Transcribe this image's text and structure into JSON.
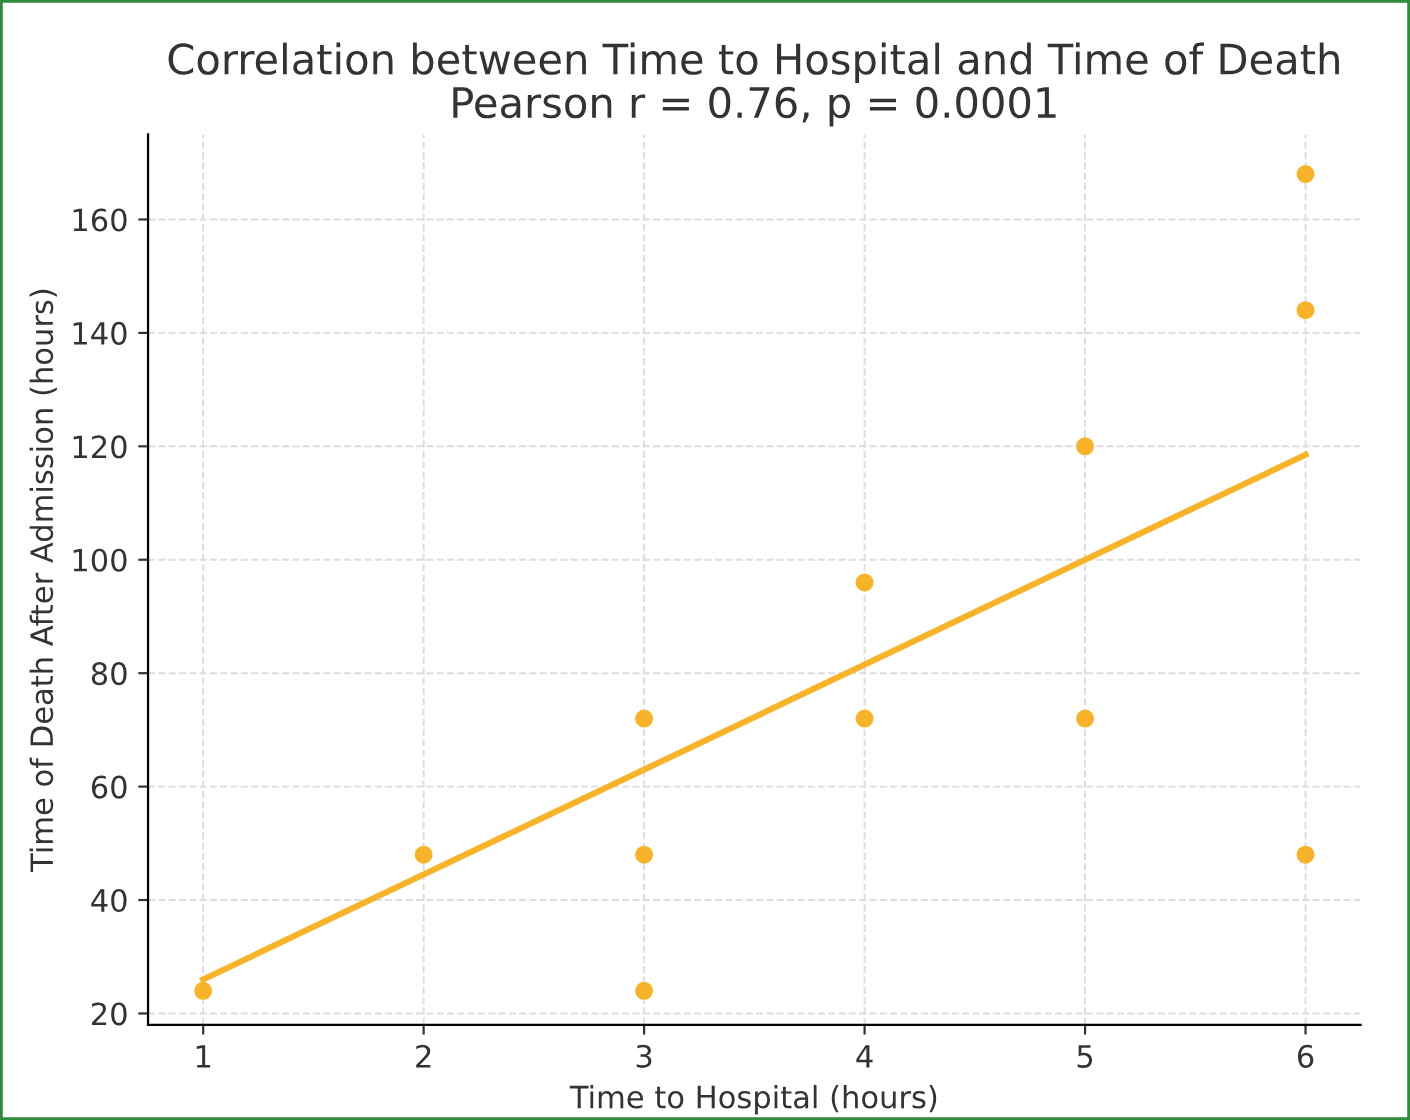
{
  "chart_data": {
    "type": "scatter",
    "title": "Correlation between Time to Hospital and Time of Death\nPearson r = 0.76, p = 0.0001",
    "xlabel": "Time to Hospital (hours)",
    "ylabel": "Time of Death After Admission (hours)",
    "series": [
      {
        "color": "#f7b329",
        "x": [
          1,
          2,
          3,
          3,
          3,
          4,
          4,
          5,
          5,
          6,
          6,
          6
        ],
        "values": [
          24,
          48,
          72,
          48,
          24,
          96,
          72,
          120,
          72,
          168,
          144,
          48
        ],
        "marker": "circle"
      },
      {
        "type": "line",
        "color": "#f7b329",
        "x": [
          1,
          6
        ],
        "values": [
          26,
          118.5
        ],
        "line_style": "solid"
      }
    ],
    "xlim": [
      0.75,
      6.25
    ],
    "ylim": [
      18,
      175
    ],
    "xticks": [
      1,
      2,
      3,
      4,
      5,
      6
    ],
    "yticks": [
      20,
      40,
      60,
      80,
      100,
      120,
      140,
      160
    ],
    "grid": true
  }
}
